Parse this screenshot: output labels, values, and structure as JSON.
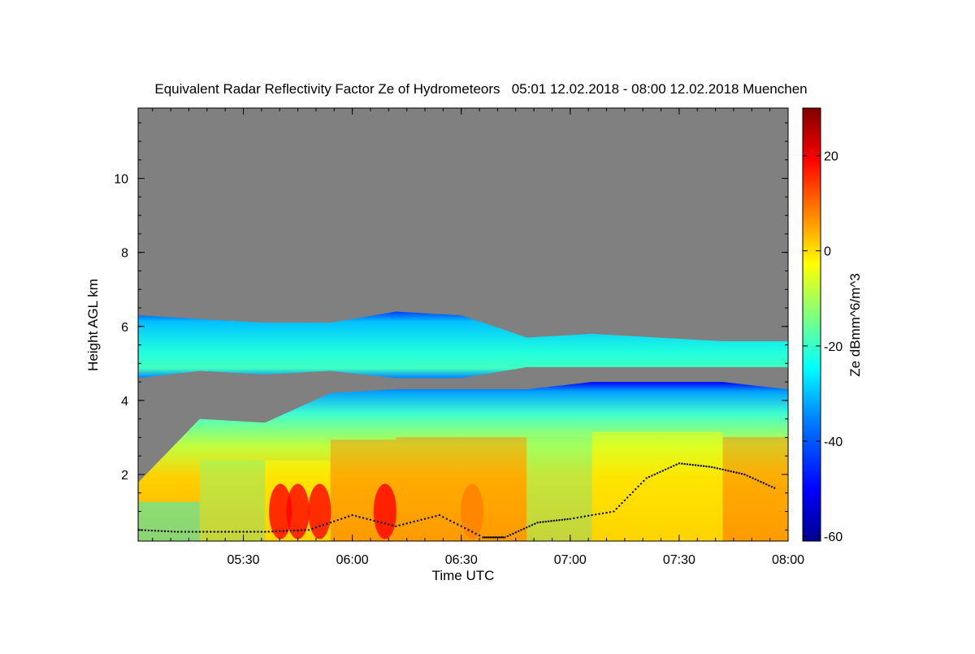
{
  "chart_data": {
    "type": "heatmap",
    "title": "Equivalent Radar Reflectivity Factor Ze of Hydrometeors   05:01 12.02.2018 - 08:00 12.02.2018 Muenchen",
    "xlabel": "Time UTC",
    "ylabel": "Height AGL km",
    "colorbar_label": "Ze dBmm^6/m^3",
    "x_range_minutes": [
      5.017,
      8.0
    ],
    "x_ticks": [
      {
        "value": 5.5,
        "label": "05:30"
      },
      {
        "value": 6.0,
        "label": "06:00"
      },
      {
        "value": 6.5,
        "label": "06:30"
      },
      {
        "value": 7.0,
        "label": "07:00"
      },
      {
        "value": 7.5,
        "label": "07:30"
      },
      {
        "value": 8.0,
        "label": "08:00"
      }
    ],
    "ylim": [
      0.2,
      11.9
    ],
    "y_ticks": [
      2,
      4,
      6,
      8,
      10
    ],
    "colorbar_range": [
      -61,
      30
    ],
    "colorbar_ticks": [
      20,
      0,
      -20,
      -40,
      -60
    ],
    "colors": {
      "background": "#808080",
      "colormap": [
        "#00008f",
        "#0000ff",
        "#0080ff",
        "#00ffff",
        "#80ff80",
        "#ffff00",
        "#ff8000",
        "#ff0000",
        "#800000"
      ]
    },
    "layers": [
      {
        "name": "upper cloud band",
        "time": [
          5.02,
          5.3,
          5.6,
          5.9,
          6.2,
          6.5,
          6.8,
          7.1,
          7.4,
          7.7,
          8.0
        ],
        "top_km": [
          6.3,
          6.2,
          6.1,
          6.1,
          6.4,
          6.3,
          5.7,
          5.8,
          5.7,
          5.6,
          5.6
        ],
        "base_km": [
          4.6,
          4.8,
          4.7,
          4.8,
          4.6,
          4.6,
          4.9,
          4.9,
          4.9,
          4.9,
          4.9
        ],
        "ze_dbz": -24
      },
      {
        "name": "lower precipitation",
        "time": [
          5.02,
          5.3,
          5.6,
          5.9,
          6.2,
          6.5,
          6.8,
          7.1,
          7.4,
          7.7,
          8.0
        ],
        "top_km": [
          1.8,
          3.5,
          3.4,
          4.2,
          4.3,
          4.3,
          4.3,
          4.5,
          4.5,
          4.5,
          4.3
        ],
        "ze_dbz": [
          -28,
          -15,
          -5,
          5,
          8,
          6,
          -10,
          -5,
          0,
          5,
          -30
        ]
      },
      {
        "name": "strong cores",
        "time": [
          5.67,
          5.75,
          5.85,
          6.15,
          6.55
        ],
        "ze_dbz": [
          18,
          18,
          18,
          15,
          12
        ]
      }
    ],
    "melting_layer_dots": {
      "time": [
        5.02,
        5.2,
        5.4,
        5.6,
        5.8,
        6.0,
        6.2,
        6.4,
        6.6,
        6.7,
        6.85,
        7.0,
        7.2,
        7.35,
        7.5,
        7.65,
        7.8,
        7.95
      ],
      "height_km": [
        0.5,
        0.45,
        0.45,
        0.45,
        0.5,
        0.9,
        0.6,
        0.9,
        0.3,
        0.3,
        0.7,
        0.8,
        1.0,
        1.9,
        2.3,
        2.2,
        2.0,
        1.6
      ]
    }
  }
}
